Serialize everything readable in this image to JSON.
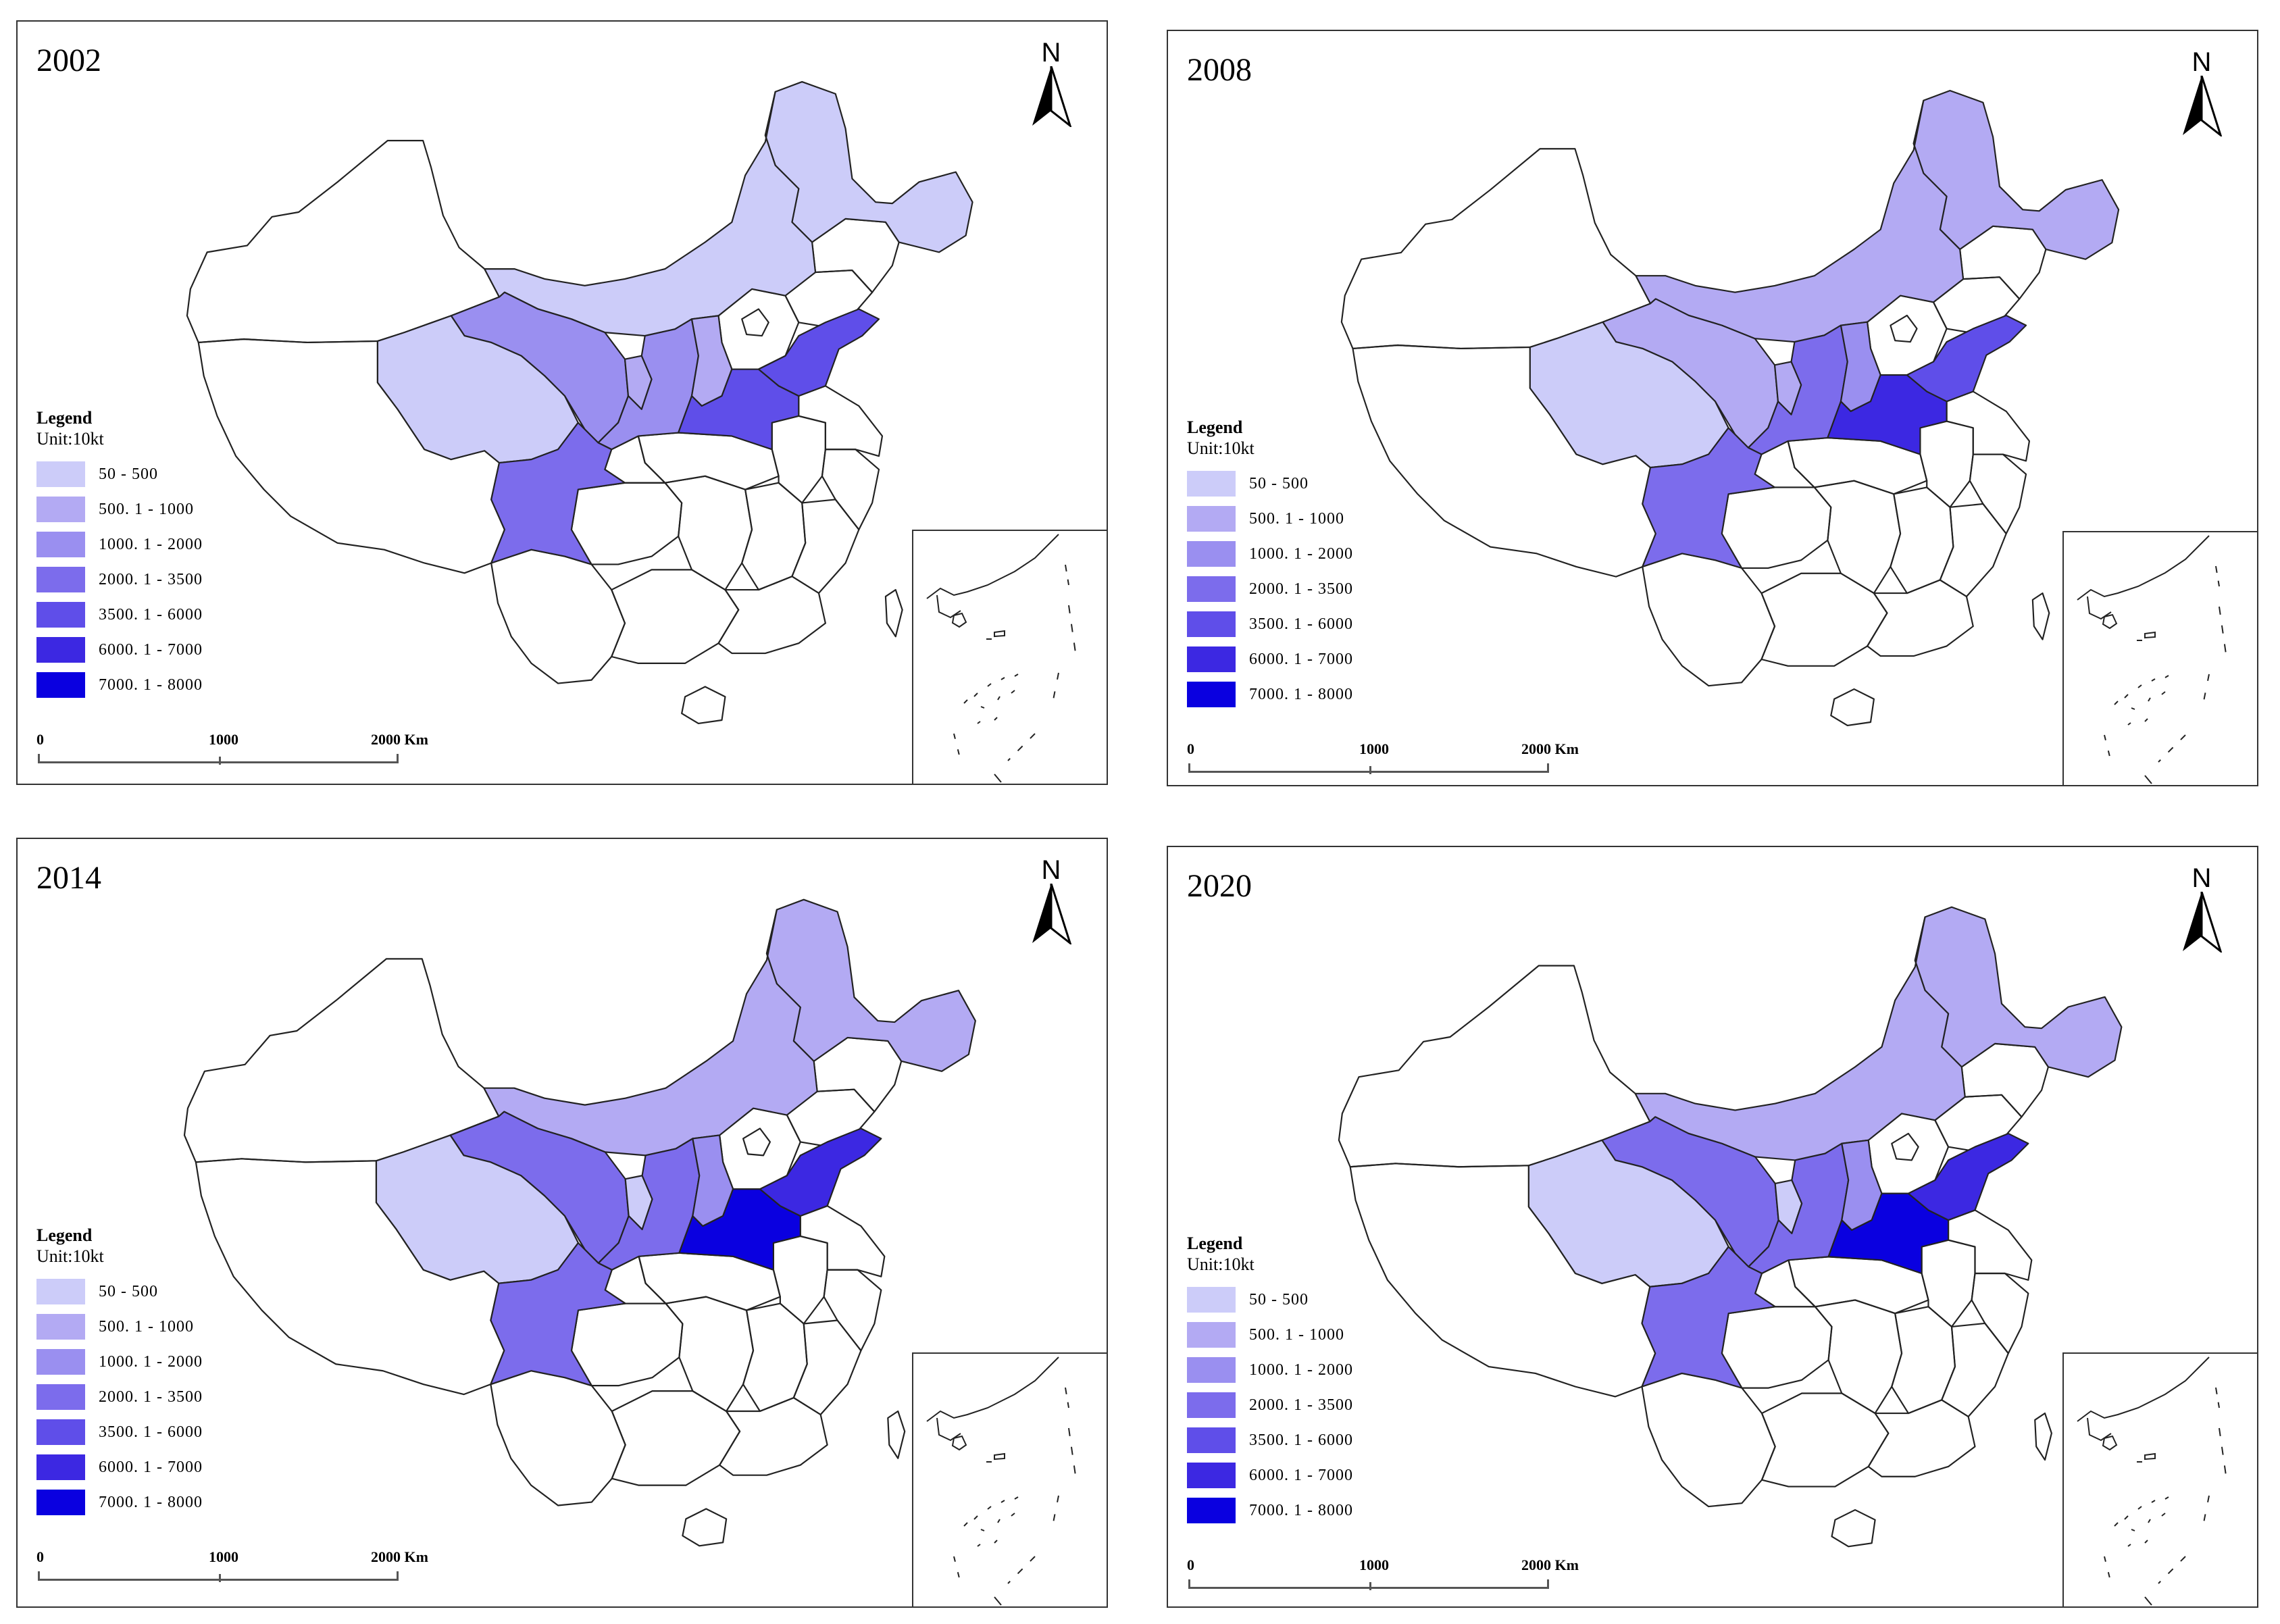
{
  "map": {
    "legend_title": "Legend",
    "unit": "Unit:10kt",
    "north_label": "N",
    "scale": {
      "labels": [
        "0",
        "1000",
        "2000 Km"
      ]
    },
    "classes": [
      {
        "label": "50 - 500",
        "color": "#ccccf9"
      },
      {
        "label": "500. 1 - 1000",
        "color": "#b3aaf3"
      },
      {
        "label": "1000. 1 - 2000",
        "color": "#9a8ff0"
      },
      {
        "label": "2000. 1 - 3500",
        "color": "#7c6cec"
      },
      {
        "label": "3500. 1 - 6000",
        "color": "#5f4ee9"
      },
      {
        "label": "6000. 1 - 7000",
        "color": "#3c28e2"
      },
      {
        "label": "7000. 1 - 8000",
        "color": "#0a00e0"
      }
    ],
    "panels": [
      {
        "year": "2002",
        "fills": {
          "inner_mongolia": 0,
          "heilongjiang": 0,
          "qinghai": 0,
          "gansu": 2,
          "ningxia": 1,
          "shaanxi": 2,
          "shanxi": 1,
          "sichuan": 3,
          "henan": 4,
          "shandong": 4
        }
      },
      {
        "year": "2008",
        "fills": {
          "inner_mongolia": 1,
          "heilongjiang": 1,
          "qinghai": 0,
          "gansu": 1,
          "ningxia": 1,
          "shaanxi": 3,
          "shanxi": 2,
          "sichuan": 3,
          "henan": 5,
          "shandong": 4
        }
      },
      {
        "year": "2014",
        "fills": {
          "inner_mongolia": 1,
          "heilongjiang": 1,
          "qinghai": 0,
          "gansu": 3,
          "ningxia": 0,
          "shaanxi": 3,
          "shanxi": 2,
          "sichuan": 3,
          "henan": 6,
          "shandong": 5
        }
      },
      {
        "year": "2020",
        "fills": {
          "inner_mongolia": 1,
          "heilongjiang": 1,
          "qinghai": 0,
          "gansu": 3,
          "ningxia": 0,
          "shaanxi": 3,
          "shanxi": 2,
          "sichuan": 3,
          "henan": 6,
          "shandong": 5
        }
      }
    ]
  }
}
